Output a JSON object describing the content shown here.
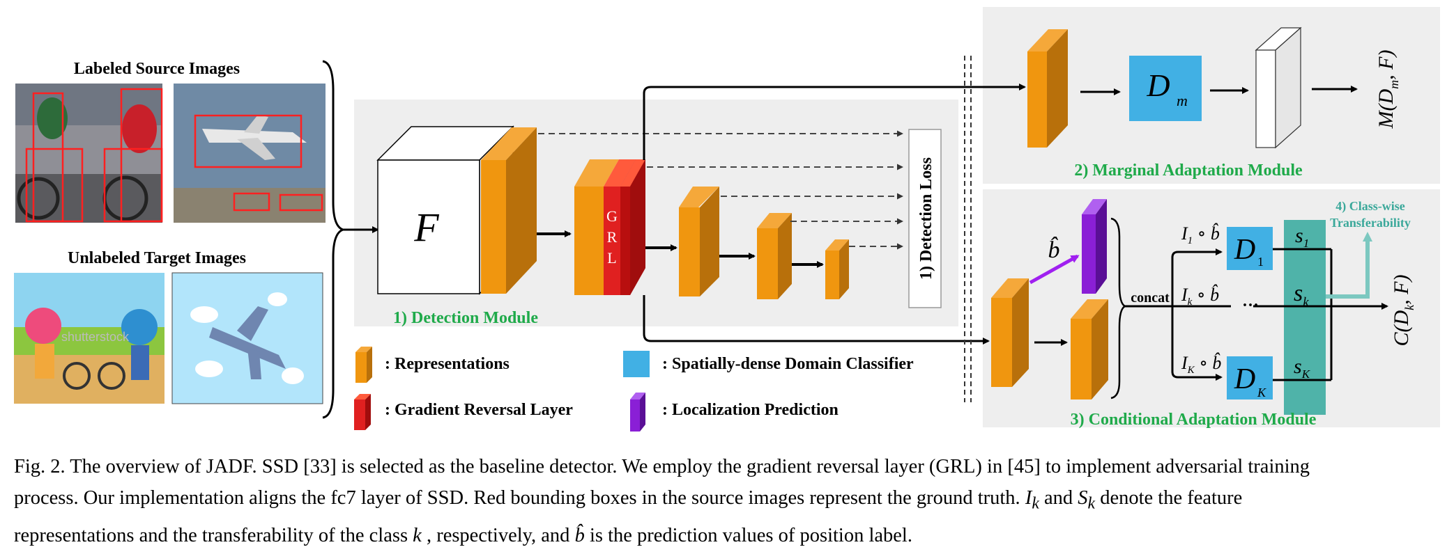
{
  "labels": {
    "labeled_source": "Labeled Source Images",
    "unlabeled_target": "Unlabeled Target Images",
    "detection_module": "1) Detection Module",
    "detection_loss": "1) Detection  Loss",
    "marginal_module": "2) Marginal Adaptation Module",
    "conditional_module": "3) Conditional Adaptation Module",
    "classwise_line1": "4) Class-wise",
    "classwise_line2": "Transferability",
    "F": "F",
    "GRL_G": "G",
    "GRL_R": "R",
    "GRL_L": "L",
    "Dm": "D",
    "Dm_sub": "m",
    "D1": "D",
    "D1_sub": "1",
    "DK": "D",
    "DK_sub": "K",
    "M_out": "M(D",
    "M_out_sub": "m",
    "M_out_tail": ", F)",
    "C_out": "C(D",
    "C_out_sub": "k",
    "C_out_tail": ", F)",
    "concat": "concat",
    "b_hat": "b̂",
    "I1": "I",
    "I1_sub": "1",
    "Ik": "I",
    "Ik_sub": "k",
    "IK": "I",
    "IK_sub": "K",
    "circ_b": " ∘ b̂",
    "s1": "s",
    "s1_sub": "1",
    "sk": "s",
    "sk_sub": "k",
    "sK": "s",
    "sK_sub": "K",
    "dots": "···",
    "watermark": "shutterstock"
  },
  "legend": {
    "representations": ":  Representations",
    "grl": ":  Gradient Reversal Layer",
    "classifier": ":  Spatially-dense Domain Classifier",
    "localization": ":  Localization Prediction"
  },
  "caption": {
    "line1": "Fig. 2. The overview of JADF. SSD [33] is selected as the baseline detector. We employ the gradient reversal layer (GRL) in [45] to implement adversarial training",
    "line2a": "process. Our implementation aligns the fc7 layer of SSD. Red bounding boxes in the source images represent the ground truth.",
    "Ik": "I",
    "Ik_sub": "k",
    "and": " and ",
    "Sk": "S",
    "Sk_sub": "k",
    "line2b": " denote the feature",
    "line3a": "representations and the transferability of the class ",
    "k": "k",
    "line3b": " , respectively, and ",
    "bhat": "b̂",
    "line3c": " is the prediction values of position label."
  },
  "colors": {
    "orange": "#f0960f",
    "orange_dark": "#b8700b",
    "red": "#e02020",
    "blue": "#41b0e4",
    "purple": "#8a1fd6",
    "teal": "#4fb3a9",
    "green_text": "#1faa4a",
    "panel_bg": "#eeeeee"
  }
}
